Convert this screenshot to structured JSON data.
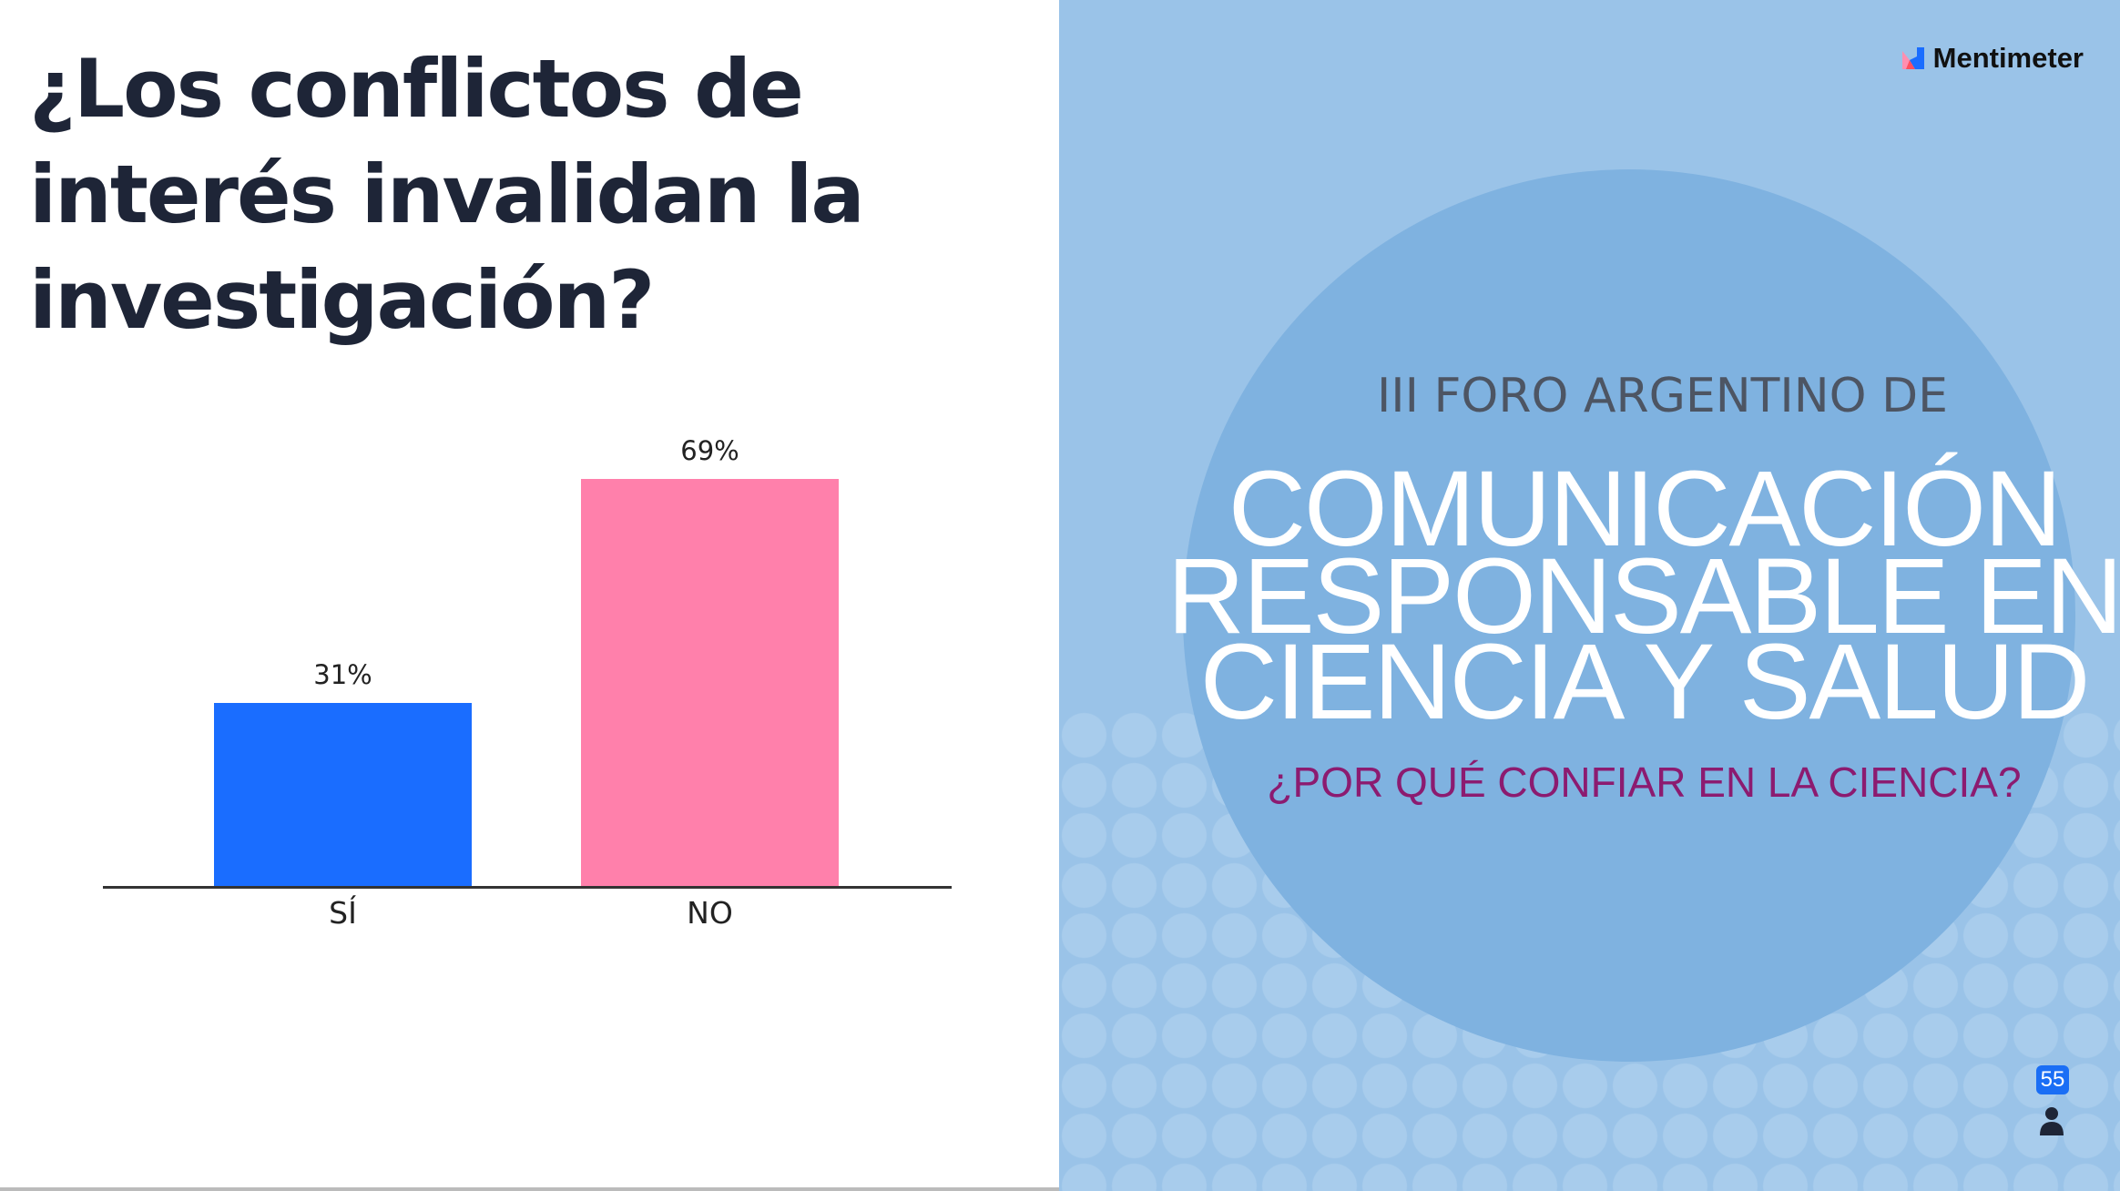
{
  "slide": {
    "title": "¿Los conflictos de interés invalidan la investigación?"
  },
  "chart_data": {
    "type": "bar",
    "categories": [
      "SÍ",
      "NO"
    ],
    "values": [
      31,
      69
    ],
    "value_labels": [
      "31%",
      "69%"
    ],
    "colors": [
      "#1a6dff",
      "#ff80ab"
    ],
    "ylim": [
      0,
      69
    ],
    "grid": false
  },
  "image": {
    "line1": "III FORO ARGENTINO DE",
    "line2": "COMUNICACIÓN",
    "line3": "RESPONSABLE EN",
    "line4": "CIENCIA Y SALUD",
    "line5": "¿POR QUÉ CONFIAR EN LA CIENCIA?"
  },
  "brand": {
    "name": "Mentimeter"
  },
  "participants": {
    "count": "55",
    "icon": "person-icon"
  }
}
